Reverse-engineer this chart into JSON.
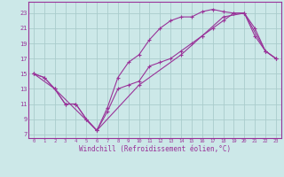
{
  "title": "",
  "xlabel": "Windchill (Refroidissement éolien,°C)",
  "bg_color": "#cce8e8",
  "grid_color": "#aacccc",
  "line_color": "#993399",
  "xlim": [
    -0.5,
    23.5
  ],
  "ylim": [
    6.5,
    24.5
  ],
  "yticks": [
    7,
    9,
    11,
    13,
    15,
    17,
    19,
    21,
    23
  ],
  "xticks": [
    0,
    1,
    2,
    3,
    4,
    5,
    6,
    7,
    8,
    9,
    10,
    11,
    12,
    13,
    14,
    15,
    16,
    17,
    18,
    19,
    20,
    21,
    22,
    23
  ],
  "lines": [
    {
      "x": [
        0,
        1,
        2,
        3,
        4,
        5,
        6,
        7,
        8,
        9,
        10,
        11,
        12,
        13,
        14,
        15,
        16,
        17,
        18,
        19,
        20,
        21,
        22,
        23
      ],
      "y": [
        15,
        14.5,
        13,
        11,
        11,
        9,
        7.5,
        10,
        13,
        13.5,
        14,
        16,
        16.5,
        17,
        18,
        19,
        20,
        21,
        22,
        23,
        23,
        21,
        18,
        17
      ]
    },
    {
      "x": [
        0,
        1,
        2,
        3,
        4,
        5,
        6,
        7,
        8,
        9,
        10,
        11,
        12,
        13,
        14,
        15,
        16,
        17,
        18,
        19,
        20,
        21,
        22,
        23
      ],
      "y": [
        15,
        14.5,
        13,
        11,
        11,
        9,
        7.5,
        10.5,
        14.5,
        16.5,
        17.5,
        19.5,
        21,
        22,
        22.5,
        22.5,
        23.2,
        23.5,
        23.2,
        23,
        23,
        20,
        18,
        17
      ]
    },
    {
      "x": [
        0,
        2,
        6,
        10,
        14,
        16,
        18,
        20,
        22,
        23
      ],
      "y": [
        15,
        13,
        7.5,
        13.5,
        17.5,
        20,
        22.5,
        23,
        18,
        17
      ]
    }
  ]
}
